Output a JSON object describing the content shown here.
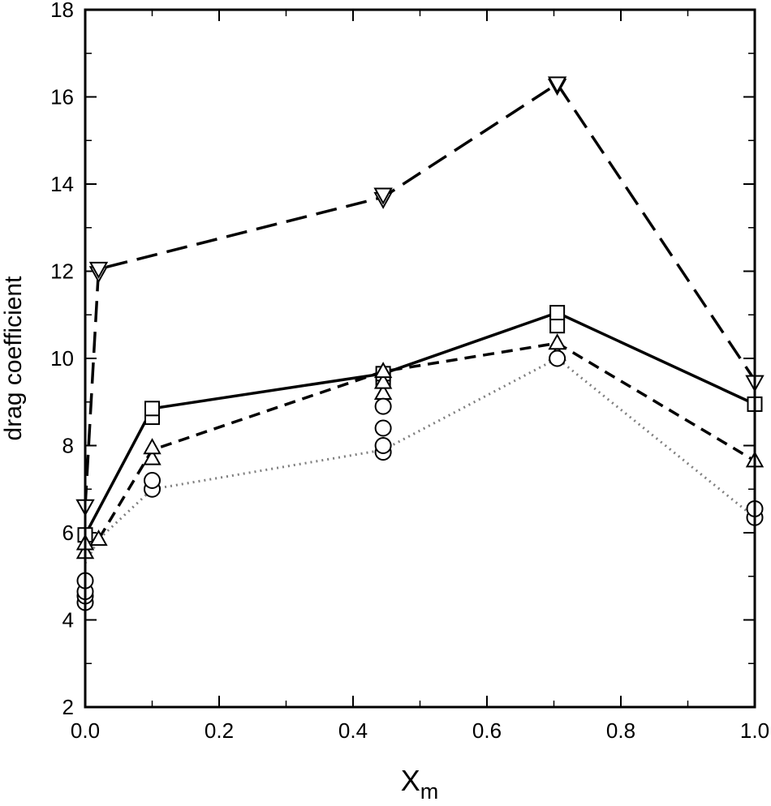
{
  "chart_data": {
    "type": "line",
    "xlabel": "X",
    "xlabel_sub": "m",
    "ylabel": "drag coefficient",
    "xlim": [
      0.0,
      1.0
    ],
    "ylim": [
      2,
      18
    ],
    "x_ticks": [
      0.0,
      0.2,
      0.4,
      0.6,
      0.8,
      1.0
    ],
    "x_tick_labels": [
      "0.0",
      "0.2",
      "0.4",
      "0.6",
      "0.8",
      "1.0"
    ],
    "y_ticks": [
      2,
      4,
      6,
      8,
      10,
      12,
      14,
      16,
      18
    ],
    "y_tick_labels": [
      "2",
      "4",
      "6",
      "8",
      "10",
      "12",
      "14",
      "16",
      "18"
    ],
    "grid": false,
    "legend": false,
    "series": [
      {
        "marker": "triangle-down",
        "line_style": "long-dash",
        "color": "#000000",
        "line_x": [
          0.0,
          0.02,
          0.445,
          0.705,
          1.0
        ],
        "line_y": [
          6.6,
          12.05,
          13.7,
          16.3,
          9.5
        ],
        "points": [
          {
            "x": 0.0,
            "y": 6.6
          },
          {
            "x": 0.02,
            "y": 11.95
          },
          {
            "x": 0.02,
            "y": 12.05
          },
          {
            "x": 0.445,
            "y": 13.65
          },
          {
            "x": 0.445,
            "y": 13.75
          },
          {
            "x": 0.705,
            "y": 16.25
          },
          {
            "x": 0.705,
            "y": 16.3
          },
          {
            "x": 1.0,
            "y": 9.45
          }
        ]
      },
      {
        "marker": "square",
        "line_style": "solid",
        "color": "#000000",
        "line_x": [
          0.0,
          0.1,
          0.445,
          0.705,
          1.0
        ],
        "line_y": [
          5.95,
          8.85,
          9.65,
          11.05,
          8.95
        ],
        "points": [
          {
            "x": 0.0,
            "y": 5.95
          },
          {
            "x": 0.1,
            "y": 8.65
          },
          {
            "x": 0.1,
            "y": 8.85
          },
          {
            "x": 0.445,
            "y": 9.5
          },
          {
            "x": 0.445,
            "y": 9.65
          },
          {
            "x": 0.705,
            "y": 10.75
          },
          {
            "x": 0.705,
            "y": 11.05
          },
          {
            "x": 1.0,
            "y": 8.95
          }
        ]
      },
      {
        "marker": "triangle-up",
        "line_style": "short-dash",
        "color": "#000000",
        "line_x": [
          0.0,
          0.02,
          0.1,
          0.445,
          0.705,
          1.0
        ],
        "line_y": [
          5.6,
          5.85,
          7.9,
          9.7,
          10.35,
          7.65
        ],
        "points": [
          {
            "x": 0.0,
            "y": 5.55
          },
          {
            "x": 0.0,
            "y": 5.75
          },
          {
            "x": 0.02,
            "y": 5.85
          },
          {
            "x": 0.1,
            "y": 7.7
          },
          {
            "x": 0.1,
            "y": 7.95
          },
          {
            "x": 0.445,
            "y": 9.2
          },
          {
            "x": 0.445,
            "y": 9.45
          },
          {
            "x": 0.445,
            "y": 9.7
          },
          {
            "x": 0.705,
            "y": 10.1
          },
          {
            "x": 0.705,
            "y": 10.35
          },
          {
            "x": 1.0,
            "y": 7.65
          }
        ]
      },
      {
        "marker": "circle",
        "line_style": "dotted",
        "color": "#7f7f7f",
        "line_x": [
          0.0,
          0.02,
          0.1,
          0.445,
          0.705,
          1.0
        ],
        "line_y": [
          5.3,
          5.85,
          7.0,
          7.9,
          10.0,
          6.35
        ],
        "points": [
          {
            "x": 0.0,
            "y": 4.4
          },
          {
            "x": 0.0,
            "y": 4.55
          },
          {
            "x": 0.0,
            "y": 4.65
          },
          {
            "x": 0.0,
            "y": 4.9
          },
          {
            "x": 0.1,
            "y": 7.0
          },
          {
            "x": 0.1,
            "y": 7.2
          },
          {
            "x": 0.445,
            "y": 7.85
          },
          {
            "x": 0.445,
            "y": 8.0
          },
          {
            "x": 0.445,
            "y": 8.4
          },
          {
            "x": 0.445,
            "y": 8.9
          },
          {
            "x": 0.705,
            "y": 10.0
          },
          {
            "x": 1.0,
            "y": 6.35
          },
          {
            "x": 1.0,
            "y": 6.55
          }
        ]
      }
    ]
  }
}
